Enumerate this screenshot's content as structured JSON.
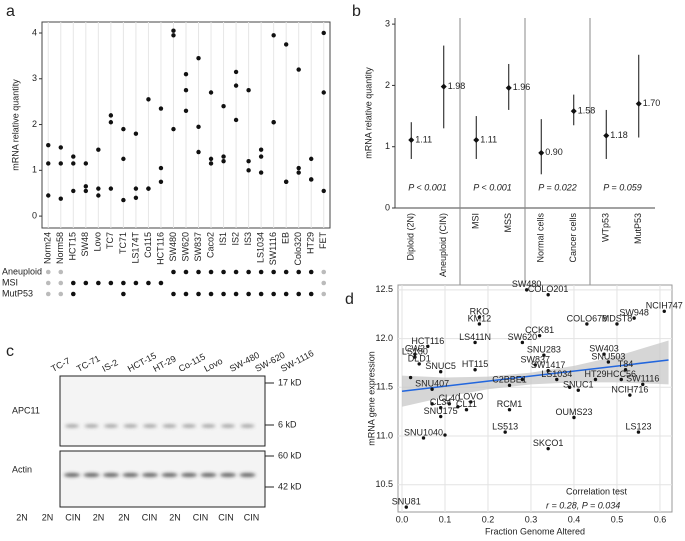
{
  "chart_data": [
    {
      "type": "strip",
      "label": "a",
      "y_label": "mRNA relative quantity",
      "color": "#111111",
      "categories": [
        "Norm24",
        "Norm58",
        "HCT15",
        "SW48",
        "Lovo",
        "TC7",
        "TC71",
        "LS174T",
        "Co115",
        "HCT116",
        "SW480",
        "SW620",
        "SW837",
        "Caco2",
        "IS1",
        "IS2",
        "IS3",
        "LS1034",
        "SW1116",
        "EB",
        "Colo320",
        "HT29",
        "FET"
      ],
      "values": [
        [
          1.55,
          1.15,
          0.45
        ],
        [
          1.5,
          1.15,
          0.38
        ],
        [
          1.3,
          1.15,
          0.55
        ],
        [
          1.15,
          0.65,
          0.55
        ],
        [
          1.45,
          0.6,
          0.45
        ],
        [
          2.2,
          2.05,
          0.6
        ],
        [
          1.9,
          1.25,
          0.35
        ],
        [
          1.8,
          0.6,
          0.4
        ],
        [
          2.55,
          0.6,
          0.6
        ],
        [
          2.35,
          1.05,
          0.75
        ],
        [
          4.05,
          3.95,
          1.9
        ],
        [
          3.1,
          2.75,
          2.3
        ],
        [
          3.45,
          1.95,
          1.4
        ],
        [
          2.7,
          1.25,
          1.15
        ],
        [
          2.4,
          1.3,
          1.2
        ],
        [
          3.15,
          2.85,
          2.1
        ],
        [
          2.75,
          1.2,
          1.0
        ],
        [
          1.45,
          1.3,
          0.95
        ],
        [
          3.95,
          2.05,
          2.05
        ],
        [
          3.75,
          0.75,
          0.75
        ],
        [
          3.2,
          1.05,
          0.95
        ],
        [
          1.25,
          0.8,
          0.8
        ],
        [
          4.0,
          2.7,
          0.55
        ]
      ],
      "ylim": [
        -0.26,
        4.24
      ],
      "yticks": [
        0,
        1,
        2,
        3,
        4
      ],
      "on_color": "#111111",
      "off_color": "#bbbbbb",
      "annotation_rows": [
        {
          "name": "Aneuploid",
          "values": [
            0,
            0,
            null,
            null,
            null,
            null,
            null,
            null,
            null,
            null,
            1,
            1,
            1,
            1,
            1,
            1,
            1,
            1,
            1,
            1,
            1,
            1,
            0
          ]
        },
        {
          "name": "MSI",
          "values": [
            0,
            0,
            1,
            1,
            1,
            1,
            1,
            1,
            1,
            1,
            null,
            null,
            null,
            null,
            null,
            null,
            null,
            null,
            null,
            null,
            null,
            null,
            0
          ]
        },
        {
          "name": "MutP53",
          "values": [
            0,
            0,
            1,
            null,
            null,
            null,
            1,
            null,
            null,
            null,
            1,
            1,
            1,
            1,
            1,
            1,
            1,
            1,
            1,
            1,
            1,
            1,
            0
          ]
        }
      ]
    },
    {
      "type": "errorbar",
      "label": "b",
      "y_label": "mRNA relative quantity",
      "color": "#111111",
      "categories": [
        "Diploid (2N)",
        "Aneuploid (CIN)",
        "MSI",
        "MSS",
        "Normal cells",
        "Cancer cells",
        "WTp53",
        "MutP53"
      ],
      "values": [
        1.11,
        1.98,
        1.11,
        1.96,
        0.9,
        1.58,
        1.18,
        1.7
      ],
      "value_labels": [
        "1.11",
        "1.98",
        "1.11",
        "1.96",
        "0.90",
        "1.58",
        "1.18",
        "1.70"
      ],
      "lower": [
        0.8,
        1.3,
        0.8,
        1.6,
        0.55,
        1.35,
        0.8,
        1.15
      ],
      "upper": [
        1.4,
        2.65,
        1.5,
        2.35,
        1.45,
        1.85,
        1.6,
        2.5
      ],
      "annotations": [
        "P < 0.001",
        "P < 0.001",
        "P = 0.022",
        "P = 0.059"
      ],
      "ylim": [
        0,
        3.1
      ],
      "yticks": [
        0,
        1,
        2,
        3
      ]
    },
    {
      "type": "scatter",
      "label": "d",
      "x_label": "Fraction Genome Altered",
      "y_label": "mRNA gene expression",
      "color": "#111111",
      "fit_color": "#2266dd",
      "band_color": "#c8c8c8",
      "grid": true,
      "x": [
        0.29,
        0.34,
        0.61,
        0.54,
        0.5,
        0.18,
        0.18,
        0.43,
        0.32,
        0.17,
        0.28,
        0.06,
        0.03,
        0.03,
        0.47,
        0.33,
        0.04,
        0.48,
        0.31,
        0.17,
        0.09,
        0.34,
        0.52,
        0.36,
        0.45,
        0.51,
        0.56,
        0.07,
        0.25,
        0.41,
        0.53,
        0.16,
        0.11,
        0.09,
        0.15,
        0.25,
        0.09,
        0.4,
        0.24,
        0.55,
        0.05,
        0.34,
        0.01,
        0.02,
        0.07,
        0.1,
        0.13,
        0.28,
        0.39
      ],
      "y": [
        12.5,
        12.45,
        12.28,
        12.21,
        12.15,
        12.22,
        12.15,
        12.15,
        12.03,
        11.96,
        11.96,
        11.92,
        11.84,
        11.81,
        11.84,
        11.83,
        11.74,
        11.76,
        11.73,
        11.68,
        11.66,
        11.67,
        11.68,
        11.58,
        11.58,
        11.58,
        11.53,
        11.48,
        11.52,
        11.47,
        11.42,
        11.35,
        11.33,
        11.29,
        11.27,
        11.27,
        11.2,
        11.19,
        11.04,
        11.04,
        10.98,
        10.87,
        10.27,
        11.6,
        11.33,
        11.01,
        11.3,
        11.58,
        11.5
      ],
      "labels": [
        "SW480",
        "COLO201",
        "NCIH747",
        "SW948",
        "MDST8",
        "RKO",
        "KM12",
        "COLO678",
        "CCK81",
        "LS411N",
        "SW620",
        "HCT116",
        "CW2",
        "LS180",
        "SW403",
        "SNU283",
        "DLD1",
        "SNU503",
        "SW837",
        "HT115",
        "SNUC5",
        "SW1417",
        "T84",
        "LS1034",
        "HT29",
        "HCC56",
        "SW1116",
        "SNU407",
        "C2BBE1",
        "SNUC1",
        "NCIH716",
        "LOVO",
        "CL40",
        "CL34",
        "CL11",
        "RCM1",
        "SNU175",
        "OUMS23",
        "LS513",
        "LS123",
        "SNU1040",
        "SKCO1",
        "SNU81",
        null,
        null,
        null,
        null,
        null,
        null
      ],
      "fit": {
        "x": [
          0,
          0.62
        ],
        "y": [
          11.46,
          11.78
        ]
      },
      "band": {
        "x": [
          0,
          0.1,
          0.2,
          0.3,
          0.4,
          0.5,
          0.62
        ],
        "lower": [
          11.3,
          11.4,
          11.48,
          11.53,
          11.55,
          11.55,
          11.53
        ],
        "upper": [
          11.62,
          11.6,
          11.61,
          11.65,
          11.72,
          11.82,
          11.98
        ]
      },
      "annotations": [
        "Correlation test",
        "r = 0.28,  P = 0.034"
      ],
      "xlim": [
        -0.0093,
        0.628
      ],
      "xticks": [
        {
          "value": 0,
          "label": "0.0"
        },
        0.1,
        0.2,
        0.3,
        0.4,
        0.5,
        0.6
      ],
      "ylim": [
        10.22,
        12.55
      ],
      "yticks": [
        10.5,
        {
          "value": 11,
          "label": "11.0"
        },
        11.5,
        {
          "value": 12,
          "label": "12.0"
        },
        12.5
      ]
    }
  ],
  "blot": {
    "label": "c",
    "lanes": [
      "TC-7",
      "TC-71",
      "IS-2",
      "HCT-15",
      "HT-29",
      "Co-115",
      "Lovo",
      "SW-480",
      "SW-620",
      "SW-1116"
    ],
    "ploidy": [
      "2N",
      "2N",
      "CIN",
      "2N",
      "2N",
      "CIN",
      "2N",
      "CIN",
      "CIN",
      "CIN"
    ],
    "rows": [
      {
        "name": "APC11",
        "markers": [
          "17 kD",
          "6 kD"
        ]
      },
      {
        "name": "Actin",
        "markers": [
          "60 kD",
          "42 kD"
        ]
      }
    ]
  }
}
